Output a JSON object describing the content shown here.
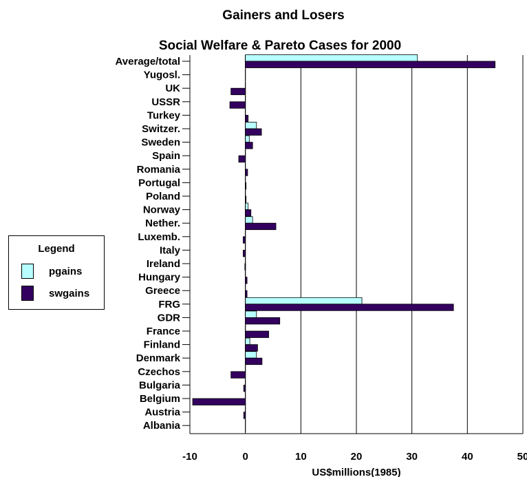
{
  "colors": {
    "pgains": "#b8ffff",
    "swgains": "#33005f",
    "grid": "#000000"
  },
  "legend": {
    "title": "Legend",
    "items": [
      {
        "label": "pgains",
        "color": "#b8ffff"
      },
      {
        "label": "swgains",
        "color": "#33005f"
      }
    ]
  },
  "chart_data": {
    "type": "bar",
    "orientation": "horizontal",
    "title": "Gainers and Losers",
    "subtitle": "Social Welfare & Pareto Cases for 2000",
    "xlabel": "US$millions(1985)",
    "ylabel": "",
    "xlim": [
      -10,
      50
    ],
    "xticks": [
      "-10",
      "0",
      "10",
      "20",
      "30",
      "40",
      "50"
    ],
    "grid": "vertical",
    "legend_position": "left",
    "categories": [
      "Average/total",
      "Yugosl.",
      "UK",
      "USSR",
      "Turkey",
      "Switzer.",
      "Sweden",
      "Spain",
      "Romania",
      "Portugal",
      "Poland",
      "Norway",
      "Nether.",
      "Luxemb.",
      "Italy",
      "Ireland",
      "Hungary",
      "Greece",
      "FRG",
      "GDR",
      "France",
      "Finland",
      "Denmark",
      "Czechos",
      "Bulgaria",
      "Belgium",
      "Austria",
      "Albania"
    ],
    "series": [
      {
        "name": "pgains",
        "values": [
          31,
          0,
          0,
          0,
          0,
          2,
          0.7,
          0,
          0,
          0,
          0,
          0.5,
          1.3,
          0,
          0,
          0,
          0,
          0,
          21,
          2,
          0,
          0.8,
          2,
          0,
          0,
          0,
          0,
          0
        ]
      },
      {
        "name": "swgains",
        "values": [
          45,
          0,
          -2.6,
          -2.8,
          0.5,
          2.9,
          1.3,
          -1.2,
          0.4,
          0.1,
          0.1,
          1,
          5.5,
          -0.4,
          -0.4,
          -0.1,
          0.3,
          0.3,
          37.5,
          6.2,
          4.2,
          2.2,
          3,
          -2.6,
          -0.3,
          -9.5,
          -0.3,
          0
        ]
      }
    ]
  }
}
